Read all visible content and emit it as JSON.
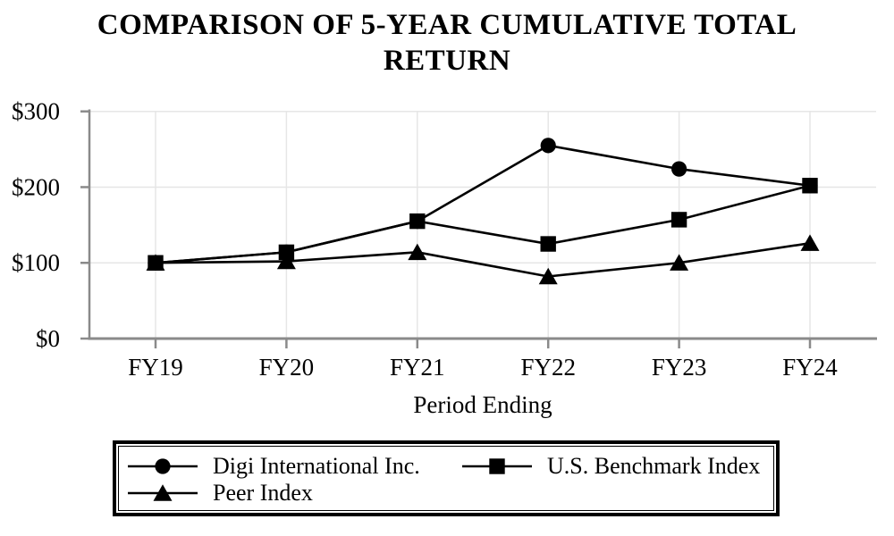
{
  "page": {
    "background": "#ffffff"
  },
  "chart_data": {
    "type": "line",
    "title": "COMPARISON OF 5-YEAR CUMULATIVE TOTAL RETURN",
    "title_lines": [
      "COMPARISON OF 5-YEAR CUMULATIVE TOTAL",
      "RETURN"
    ],
    "xlabel": "Period Ending",
    "ylabel": "",
    "categories": [
      "FY19",
      "FY20",
      "FY21",
      "FY22",
      "FY23",
      "FY24"
    ],
    "y_ticks": {
      "values": [
        0,
        100,
        200,
        300
      ],
      "labels": [
        "$0",
        "$100",
        "$200",
        "$300"
      ]
    },
    "ylim": [
      0,
      300
    ],
    "grid": true,
    "legend_position": "bottom",
    "series": [
      {
        "name": "Digi International Inc.",
        "marker": "circle",
        "values": [
          100,
          114,
          155,
          255,
          224,
          202
        ]
      },
      {
        "name": "U.S. Benchmark Index",
        "marker": "square",
        "values": [
          100,
          114,
          155,
          125,
          157,
          202
        ]
      },
      {
        "name": "Peer Index",
        "marker": "triangle",
        "values": [
          100,
          102,
          114,
          82,
          100,
          126
        ]
      }
    ],
    "colors": {
      "series": "#000000",
      "grid": "#e6e6e6",
      "axis": "#8a8a8a",
      "text": "#000000",
      "legend_border": "#000000"
    }
  }
}
